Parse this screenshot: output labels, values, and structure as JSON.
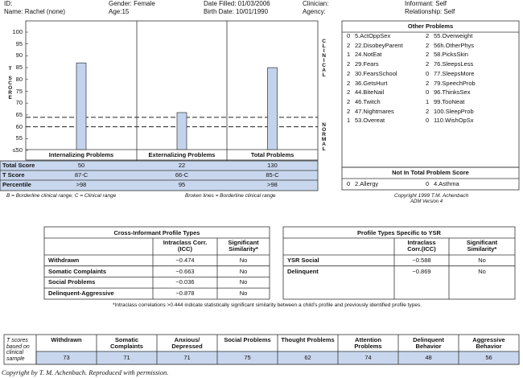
{
  "header": {
    "id": "ID:",
    "name": "Name: Rachel (none)",
    "gender": "Gender: Female",
    "age": "Age:15",
    "date_filled": "Date Filled: 01/03/2006",
    "birth_date": "Birth Date: 10/01/1990",
    "clinician": "Clinician:",
    "agency": "Agency:",
    "informant": "Informant: Self",
    "relationship": "Relationship: Self"
  },
  "chart_data": {
    "type": "bar",
    "y_label": "T SCORE",
    "categories": [
      "Internalizing Problems",
      "Externalizing Problems",
      "Total Problems"
    ],
    "values": [
      87,
      66,
      85
    ],
    "value_labels": [
      "87-C",
      "66-C",
      "85-C"
    ],
    "color": "#c3d3ee",
    "ylim": [
      50,
      100
    ],
    "yticks": [
      {
        "value": 50,
        "label": "≤50"
      },
      55,
      60,
      65,
      70,
      75,
      80,
      85,
      90,
      95,
      100
    ],
    "reference_lines": [
      60,
      64
    ],
    "clinical_label": "CLINICAL",
    "normal_label": "NORMAL",
    "row_labels": [
      "Total Score",
      "T Score",
      "Percentile"
    ],
    "total_scores": [
      50,
      22,
      130
    ],
    "percentiles": [
      ">98",
      "95",
      ">98"
    ],
    "notes": [
      "B = Borderline clinical range; C = Clinical range",
      "Broken lines = Borderline clinical range"
    ]
  },
  "other_problems": {
    "title": "Other Problems",
    "items": [
      {
        "score": 0,
        "label": "5.ActOppSex"
      },
      {
        "score": 2,
        "label": "22.DisobeyParent"
      },
      {
        "score": 1,
        "label": "24.NotEat"
      },
      {
        "score": 2,
        "label": "29.Fears"
      },
      {
        "score": 2,
        "label": "30.FearsSchool"
      },
      {
        "score": 2,
        "label": "36.GetsHurt"
      },
      {
        "score": 2,
        "label": "44.BiteNail"
      },
      {
        "score": 2,
        "label": "46.Twitch"
      },
      {
        "score": 2,
        "label": "47.Nightmares"
      },
      {
        "score": 1,
        "label": "53.Overeat"
      },
      {
        "score": 2,
        "label": "55.Overweight"
      },
      {
        "score": 2,
        "label": "56h.OtherPhys"
      },
      {
        "score": 2,
        "label": "58.PicksSkin"
      },
      {
        "score": 2,
        "label": "76.SleepsLess"
      },
      {
        "score": 0,
        "label": "77.SleepsMore"
      },
      {
        "score": 2,
        "label": "79.SpeechProb"
      },
      {
        "score": 0,
        "label": "96.ThinksSex"
      },
      {
        "score": 1,
        "label": "99.TooNeat"
      },
      {
        "score": 2,
        "label": "100.SleepProb"
      },
      {
        "score": 0,
        "label": "110.WishOpSx"
      }
    ],
    "not_in_total_title": "Not In Total Problem Score",
    "not_in_total": [
      {
        "score": 0,
        "label": "2.Allergy"
      },
      {
        "score": 0,
        "label": "4.Asthma"
      }
    ],
    "copyright": "Copyright 1999 T.M. Achenbach",
    "version": "ADM Version 4"
  },
  "cross_informant": {
    "title": "Cross-Informant Profile Types",
    "columns": [
      "Intraclass Corr.(ICC)",
      "Significant Similarity*"
    ],
    "rows": [
      [
        "Withdrawn",
        "−0.474",
        "No"
      ],
      [
        "Somatic Complaints",
        "−0.663",
        "No"
      ],
      [
        "Social Problems",
        "−0.036",
        "No"
      ],
      [
        "Delinquent-Aggressive",
        "−0.878",
        "No"
      ]
    ]
  },
  "ysr_specific": {
    "title": "Profile Types Specific to YSR",
    "columns": [
      "Intraclass Corr.(ICC)",
      "Significant Similarity*"
    ],
    "rows": [
      [
        "YSR Social",
        "−0.588",
        "No"
      ],
      [
        "Delinquent",
        "−0.869",
        "No"
      ]
    ]
  },
  "footnote": "*Intraclass correlations >0.444 indicate statistically significant similarity between a child's profile and previously identified profile types.",
  "t_scores": {
    "label": "T scores based on clinical sample",
    "columns": [
      "Withdrawn",
      "Somatic Complaints",
      "Anxious/ Depressed",
      "Social Problems",
      "Thought Problems",
      "Attention Problems",
      "Delinquent Behavior",
      "Aggressive Behavior"
    ],
    "values": [
      73,
      71,
      71,
      75,
      62,
      74,
      48,
      56
    ]
  },
  "copyright": "Copyright by T. M. Achenbach. Reproduced with permission."
}
